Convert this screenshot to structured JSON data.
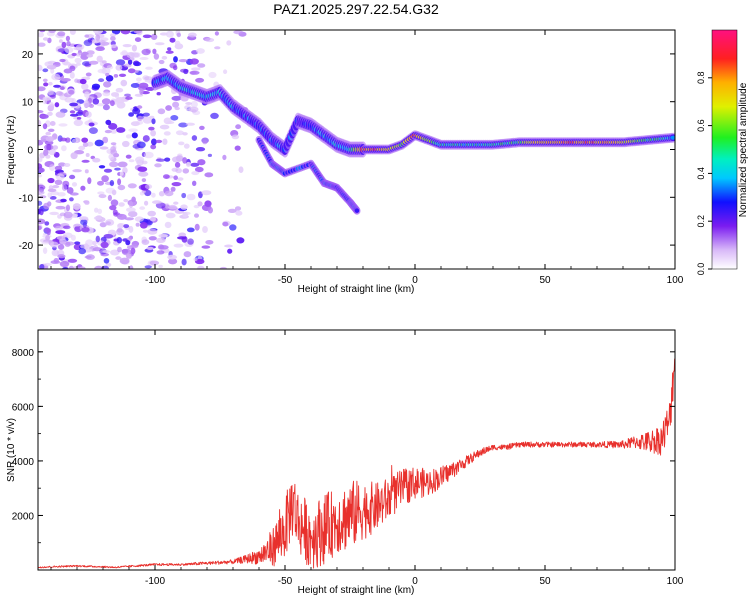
{
  "figure": {
    "title": "PAZ1.2025.297.22.54.G32"
  },
  "chart_data": [
    {
      "type": "heatmap",
      "name": "spectrogram",
      "title": "PAZ1.2025.297.22.54.G32",
      "xlabel": "Height of straight line (km)",
      "ylabel": "Frequency (Hz)",
      "xlim": [
        -145,
        100
      ],
      "ylim": [
        -25,
        25
      ],
      "xticks": [
        -100,
        -50,
        0,
        50,
        100
      ],
      "yticks": [
        -20,
        -10,
        0,
        10,
        20
      ],
      "colorbar": {
        "label": "Normalized spectral amplitude",
        "range": [
          0,
          1
        ],
        "ticks": [
          0.0,
          0.2,
          0.4,
          0.6,
          0.8
        ]
      },
      "ridge": {
        "x": [
          -100,
          -95,
          -90,
          -85,
          -80,
          -75,
          -70,
          -65,
          -60,
          -55,
          -50,
          -45,
          -40,
          -35,
          -30,
          -25,
          -20,
          -15,
          -10,
          -5,
          0,
          5,
          10,
          20,
          30,
          40,
          50,
          60,
          70,
          80,
          90,
          100
        ],
        "y": [
          14,
          15,
          13,
          12,
          11,
          12,
          9,
          7,
          5,
          2,
          0,
          6,
          5,
          3,
          1,
          0,
          0,
          0,
          0,
          1,
          3,
          2,
          1,
          1,
          1,
          1.5,
          1.5,
          1.5,
          1.5,
          1.5,
          2,
          2.5
        ],
        "amp": [
          0.35,
          0.35,
          0.4,
          0.4,
          0.4,
          0.35,
          0.35,
          0.3,
          0.3,
          0.3,
          0.3,
          0.25,
          0.3,
          0.35,
          0.4,
          0.45,
          0.8,
          0.85,
          0.7,
          0.6,
          0.85,
          0.6,
          0.45,
          0.45,
          0.45,
          0.55,
          0.75,
          0.8,
          0.8,
          0.7,
          0.5,
          0.4
        ]
      }
    },
    {
      "type": "line",
      "name": "snr",
      "xlabel": "Height of straight line (km)",
      "ylabel": "SNR (10 * v/v)",
      "xlim": [
        -145,
        100
      ],
      "ylim": [
        0,
        8800
      ],
      "xticks": [
        -100,
        -50,
        0,
        50,
        100
      ],
      "yticks": [
        2000,
        4000,
        6000,
        8000
      ],
      "color": "#e8302c",
      "x": [
        -145,
        -130,
        -115,
        -100,
        -90,
        -80,
        -70,
        -65,
        -60,
        -55,
        -50,
        -47,
        -45,
        -40,
        -35,
        -30,
        -25,
        -20,
        -15,
        -10,
        -5,
        0,
        5,
        10,
        15,
        20,
        25,
        30,
        35,
        40,
        50,
        60,
        70,
        80,
        85,
        90,
        95,
        98,
        100
      ],
      "y": [
        100,
        150,
        100,
        200,
        200,
        250,
        300,
        400,
        500,
        800,
        1500,
        2500,
        1800,
        1200,
        1500,
        1800,
        2000,
        2200,
        2300,
        2600,
        3000,
        3200,
        3200,
        3400,
        3700,
        4000,
        4300,
        4500,
        4500,
        4600,
        4600,
        4600,
        4600,
        4600,
        4700,
        4700,
        4800,
        5500,
        8000
      ],
      "noise": [
        30,
        30,
        30,
        40,
        40,
        60,
        80,
        150,
        300,
        700,
        1100,
        1300,
        1200,
        1200,
        1300,
        1200,
        1300,
        1100,
        900,
        800,
        700,
        600,
        500,
        400,
        300,
        200,
        150,
        100,
        100,
        100,
        100,
        100,
        100,
        150,
        250,
        400,
        600,
        800,
        900
      ]
    }
  ]
}
